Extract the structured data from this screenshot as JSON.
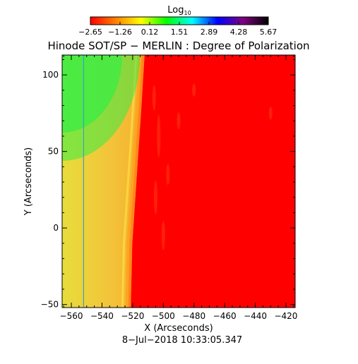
{
  "chart_data": {
    "type": "heatmap",
    "title": "Hinode SOT/SP − MERLIN : Degree of Polarization",
    "xlabel": "X (Arcseconds)",
    "ylabel": "Y (Arcseconds)",
    "footer": "8−Jul−2018 10:33:05.347",
    "xlim": [
      -566,
      -414
    ],
    "ylim": [
      -52,
      113
    ],
    "x_ticks": [
      {
        "value": -560,
        "label": "−560"
      },
      {
        "value": -540,
        "label": "−540"
      },
      {
        "value": -520,
        "label": "−520"
      },
      {
        "value": -500,
        "label": "−500"
      },
      {
        "value": -480,
        "label": "−480"
      },
      {
        "value": -460,
        "label": "−460"
      },
      {
        "value": -440,
        "label": "−440"
      },
      {
        "value": -420,
        "label": "−420"
      }
    ],
    "y_ticks": [
      {
        "value": -50,
        "label": "−50"
      },
      {
        "value": 0,
        "label": "0"
      },
      {
        "value": 50,
        "label": "50"
      },
      {
        "value": 100,
        "label": "100"
      }
    ],
    "colorbar": {
      "title": "Log",
      "title_subscript": "10",
      "range": [
        -2.65,
        5.67
      ],
      "tick_labels": [
        "−2.65",
        "−1.26",
        "0.12",
        "1.51",
        "2.89",
        "4.28",
        "5.67"
      ],
      "colors": [
        "#ff0000",
        "#ff8000",
        "#ffff00",
        "#00ff00",
        "#00ffff",
        "#0000ff",
        "#800080",
        "#000000"
      ]
    },
    "limb_boundary": [
      {
        "y": 113,
        "x": -514
      },
      {
        "y": 80,
        "x": -516
      },
      {
        "y": 50,
        "x": -518
      },
      {
        "y": 20,
        "x": -520
      },
      {
        "y": -10,
        "x": -522
      },
      {
        "y": -52,
        "x": -523
      }
    ],
    "marker_line_x": -552,
    "regions": {
      "off_limb_top_color": "#33ee44",
      "off_limb_color": "#f0c040",
      "disk_color": "#ff0000"
    }
  }
}
